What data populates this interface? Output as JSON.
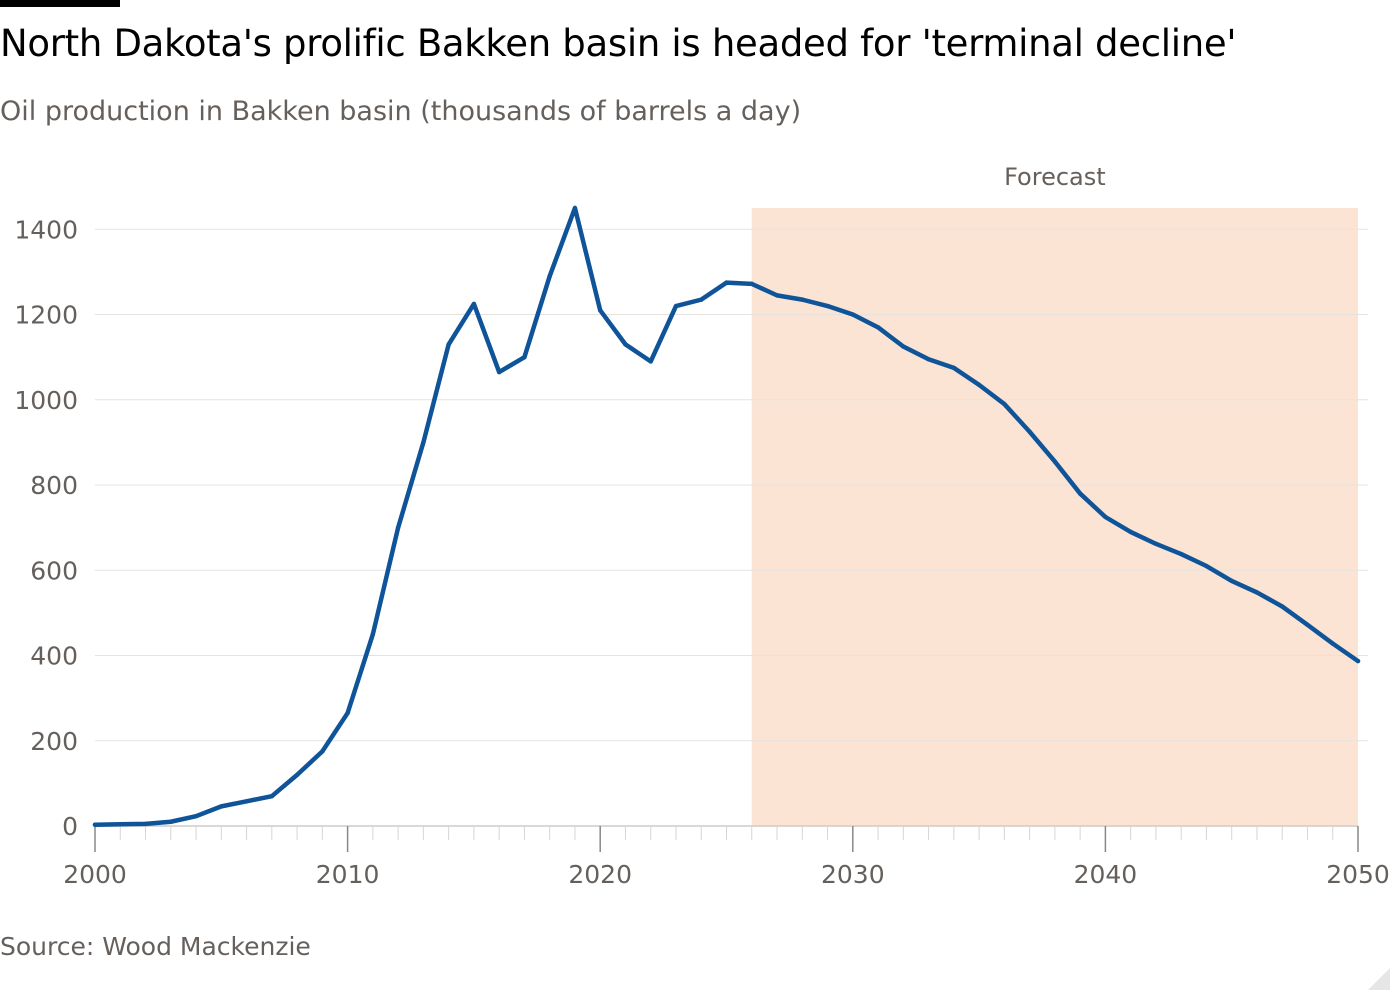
{
  "header": {
    "title": "North Dakota's prolific Bakken basin is headed for 'terminal decline'",
    "subtitle": "Oil production in Bakken basin (thousands of barrels a day)"
  },
  "footer": {
    "source": "Source: Wood Mackenzie"
  },
  "colors": {
    "line": "#0f5499",
    "forecast_band": "#fbe4d4",
    "grid": "#e6e3df",
    "tick_text": "#66605c"
  },
  "chart_data": {
    "type": "line",
    "title": "North Dakota's prolific Bakken basin is headed for 'terminal decline'",
    "subtitle": "Oil production in Bakken basin (thousands of barrels a day)",
    "xlabel": "",
    "ylabel": "",
    "xlim": [
      2000,
      2050
    ],
    "ylim": [
      0,
      1450
    ],
    "x_ticks": [
      2000,
      2010,
      2020,
      2030,
      2040,
      2050
    ],
    "y_ticks": [
      0,
      200,
      400,
      600,
      800,
      1000,
      1200,
      1400
    ],
    "grid": true,
    "forecast": {
      "label": "Forecast",
      "start": 2026,
      "end": 2050
    },
    "series": [
      {
        "name": "Oil production",
        "x": [
          2000,
          2001,
          2002,
          2003,
          2004,
          2005,
          2006,
          2007,
          2008,
          2009,
          2010,
          2011,
          2012,
          2013,
          2014,
          2015,
          2016,
          2017,
          2018,
          2019,
          2020,
          2021,
          2022,
          2023,
          2024,
          2025,
          2026,
          2027,
          2028,
          2029,
          2030,
          2031,
          2032,
          2033,
          2034,
          2035,
          2036,
          2037,
          2038,
          2039,
          2040,
          2041,
          2042,
          2043,
          2044,
          2045,
          2046,
          2047,
          2048,
          2049,
          2050
        ],
        "values": [
          3,
          4,
          5,
          10,
          23,
          46,
          58,
          70,
          120,
          175,
          265,
          450,
          700,
          900,
          1130,
          1225,
          1065,
          1100,
          1290,
          1450,
          1210,
          1130,
          1090,
          1220,
          1235,
          1275,
          1272,
          1245,
          1235,
          1220,
          1200,
          1170,
          1125,
          1095,
          1075,
          1035,
          990,
          925,
          855,
          780,
          725,
          690,
          662,
          638,
          610,
          575,
          548,
          515,
          472,
          428,
          387
        ]
      }
    ]
  }
}
